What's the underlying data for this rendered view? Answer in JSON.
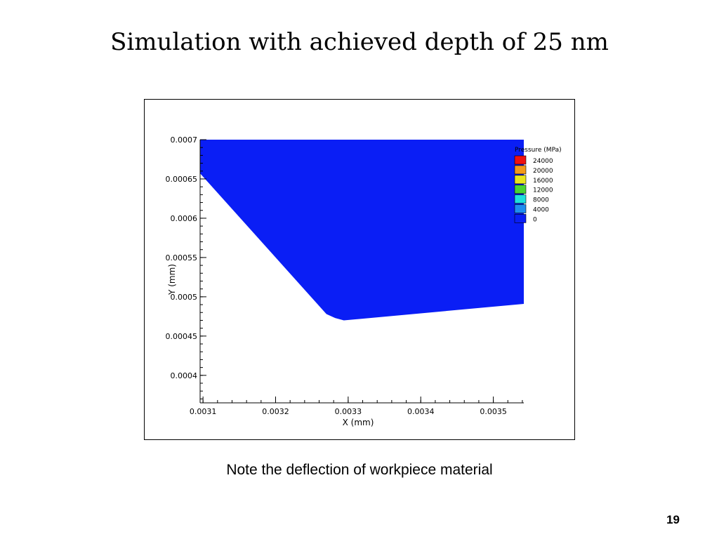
{
  "slide": {
    "title": "Simulation with achieved depth of 25 nm",
    "caption": "Note the deflection of workpiece material",
    "page_number": "19"
  },
  "chart_data": {
    "type": "area",
    "xlabel": "X (mm)",
    "ylabel": "Y (mm)",
    "xlim": [
      0.003096,
      0.003542
    ],
    "ylim": [
      0.000365,
      0.0007
    ],
    "x_ticks": [
      {
        "value": 0.0031,
        "label": "0.0031"
      },
      {
        "value": 0.0032,
        "label": "0.0032"
      },
      {
        "value": 0.0033,
        "label": "0.0033"
      },
      {
        "value": 0.0034,
        "label": "0.0034"
      },
      {
        "value": 0.0035,
        "label": "0.0035"
      }
    ],
    "y_ticks": [
      {
        "value": 0.0007,
        "label": "0.0007"
      },
      {
        "value": 0.00065,
        "label": "0.00065"
      },
      {
        "value": 0.0006,
        "label": "0.0006"
      },
      {
        "value": 0.00055,
        "label": "0.00055"
      },
      {
        "value": 0.0005,
        "label": "0.0005"
      },
      {
        "value": 0.00045,
        "label": "0.00045"
      },
      {
        "value": 0.0004,
        "label": "0.0004"
      }
    ],
    "series": [
      {
        "fill_color": "#0a1ef5",
        "boundary": [
          {
            "x": 0.003096,
            "y": 0.0007
          },
          {
            "x": 0.003542,
            "y": 0.0007
          },
          {
            "x": 0.003542,
            "y": 0.000491
          },
          {
            "x": 0.003294,
            "y": 0.00047
          },
          {
            "x": 0.003282,
            "y": 0.000473
          },
          {
            "x": 0.00327,
            "y": 0.000478
          },
          {
            "x": 0.003096,
            "y": 0.000657
          }
        ]
      }
    ],
    "legend": {
      "title": "Pressure (MPa)",
      "placement": "top-right",
      "entries": [
        {
          "label": "24000",
          "color": "#ee1111"
        },
        {
          "label": "20000",
          "color": "#f39a1a"
        },
        {
          "label": "16000",
          "color": "#e8e41e"
        },
        {
          "label": "12000",
          "color": "#4ad433"
        },
        {
          "label": "8000",
          "color": "#1ee0dc"
        },
        {
          "label": "4000",
          "color": "#1e8df0"
        },
        {
          "label": "0",
          "color": "#0a1ef5"
        }
      ]
    }
  }
}
